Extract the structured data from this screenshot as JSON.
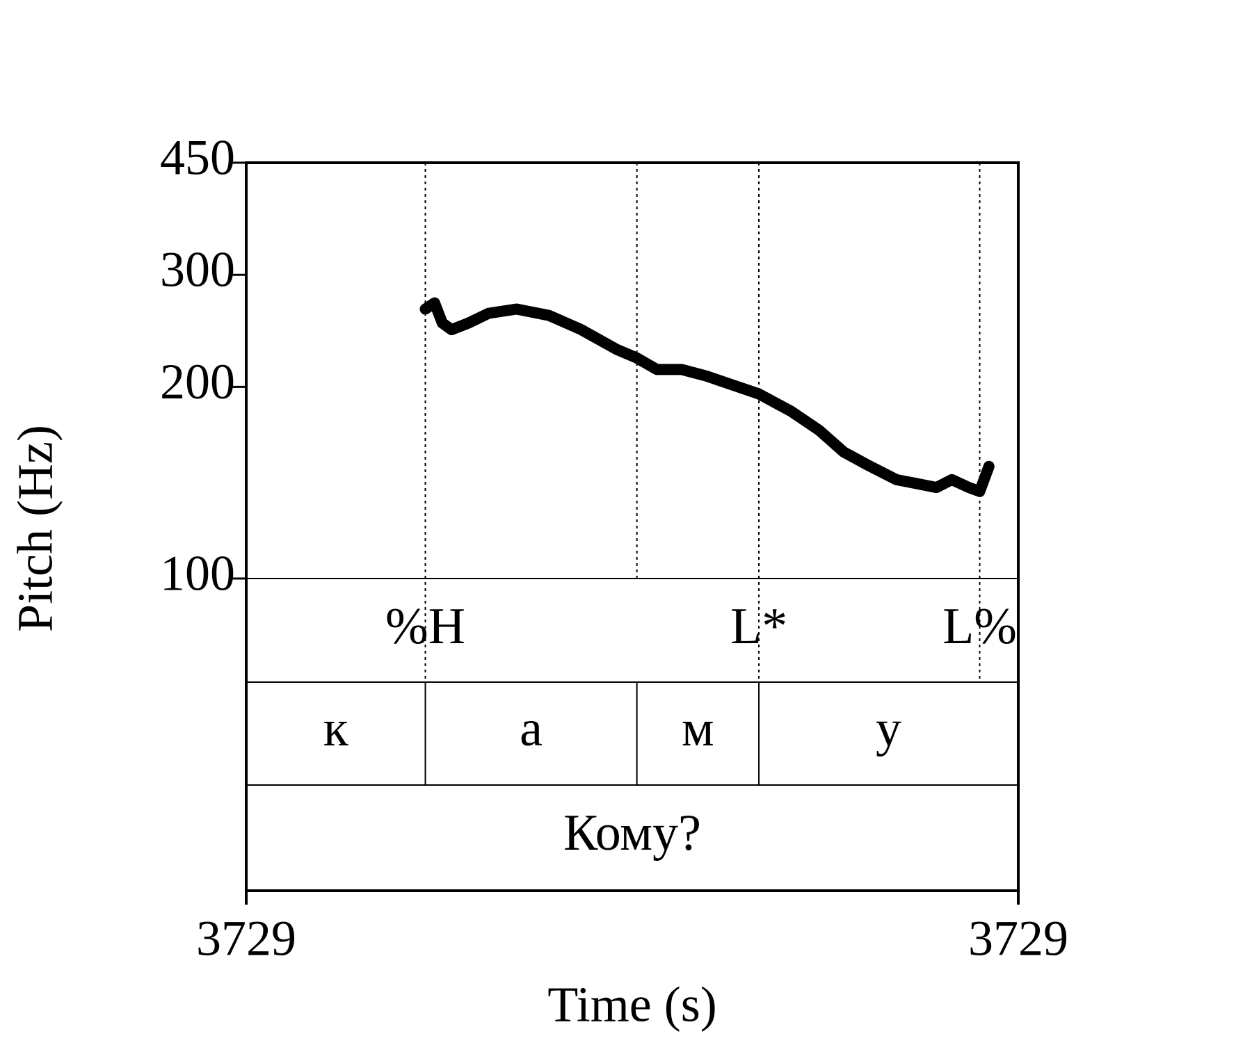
{
  "chart_data": {
    "type": "line",
    "ylabel": "Pitch (Hz)",
    "xlabel": "Time (s)",
    "log_y": true,
    "xlim": [
      3728.75,
      3729.25
    ],
    "xticks": [
      {
        "value": 3728.75,
        "label": "3729"
      },
      {
        "value": 3729.25,
        "label": "3729"
      }
    ],
    "ylim": [
      100,
      450
    ],
    "yticks": [
      100,
      200,
      300,
      450
    ],
    "color": "#000000",
    "x": [
      3728.866,
      3728.872,
      3728.877,
      3728.883,
      3728.894,
      3728.907,
      3728.925,
      3728.946,
      3728.967,
      3728.99,
      3729.003,
      3729.016,
      3729.032,
      3729.048,
      3729.066,
      3729.082,
      3729.103,
      3729.121,
      3729.137,
      3729.152,
      3729.171,
      3729.184,
      3729.197,
      3729.207,
      3729.218,
      3729.225,
      3729.231
    ],
    "values": [
      265,
      271,
      252,
      246,
      252,
      261,
      265,
      259,
      246,
      229,
      222,
      213,
      213,
      208,
      201,
      195,
      183,
      171,
      158,
      151,
      143,
      141,
      139,
      143,
      139,
      137,
      150
    ],
    "tone_tier": {
      "labels": [
        "%H",
        "L*",
        "L%"
      ],
      "times": [
        3728.866,
        3729.082,
        3729.225
      ]
    },
    "segment_tier": {
      "labels": [
        "к",
        "а",
        "м",
        "у"
      ],
      "boundaries": [
        3728.866,
        3729.003,
        3729.082
      ]
    },
    "word_tier": {
      "labels": [
        "Кому?"
      ]
    }
  }
}
